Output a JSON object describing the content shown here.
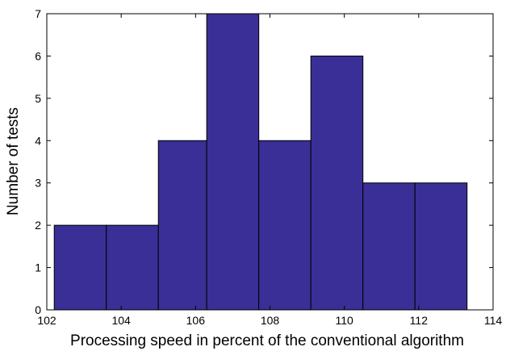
{
  "chart_data": {
    "type": "bar",
    "subtype": "histogram",
    "bins": [
      {
        "x0": 102.2,
        "x1": 103.6,
        "count": 2
      },
      {
        "x0": 103.6,
        "x1": 105.0,
        "count": 2
      },
      {
        "x0": 105.0,
        "x1": 106.3,
        "count": 4
      },
      {
        "x0": 106.3,
        "x1": 107.7,
        "count": 7
      },
      {
        "x0": 107.7,
        "x1": 109.1,
        "count": 4
      },
      {
        "x0": 109.1,
        "x1": 110.5,
        "count": 6
      },
      {
        "x0": 110.5,
        "x1": 111.9,
        "count": 3
      },
      {
        "x0": 111.9,
        "x1": 113.3,
        "count": 3
      }
    ],
    "xlabel": "Processing speed in percent of the conventional algorithm",
    "ylabel": "Number of tests",
    "xlim": [
      102,
      114
    ],
    "ylim": [
      0,
      7
    ],
    "xticks": [
      "102",
      "104",
      "106",
      "108",
      "110",
      "112",
      "114"
    ],
    "yticks": [
      "0",
      "1",
      "2",
      "3",
      "4",
      "5",
      "6",
      "7"
    ],
    "bar_color": "#3a2f96",
    "grid": false,
    "legend": "none"
  }
}
